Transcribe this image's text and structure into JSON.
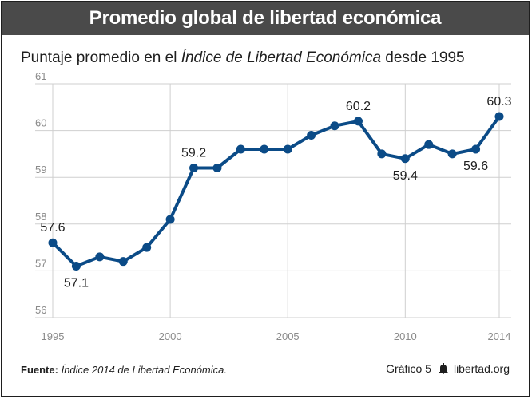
{
  "header": {
    "title": "Promedio global de libertad económica"
  },
  "subtitle": {
    "before": "Puntaje promedio en el ",
    "italic": "Índice de Libertad Económica",
    "after": " desde 1995"
  },
  "footer": {
    "source_label": "Fuente:",
    "source_text": "Índice 2014 de Libertad Económica.",
    "figure_label": "Gráfico 5",
    "site": "libertad.org",
    "icon": "bell-icon"
  },
  "colors": {
    "line": "#0b4b87",
    "header_bg": "#4a4a4a",
    "grid": "#cfcfcf",
    "axis_text": "#8a8a8a"
  },
  "chart_data": {
    "type": "line",
    "title": "Promedio global de libertad económica",
    "subtitle": "Puntaje promedio en el Índice de Libertad Económica desde 1995",
    "x": [
      1995,
      1996,
      1997,
      1998,
      1999,
      2000,
      2001,
      2002,
      2003,
      2004,
      2005,
      2006,
      2007,
      2008,
      2009,
      2010,
      2011,
      2012,
      2013,
      2014
    ],
    "series": [
      {
        "values": [
          57.6,
          57.1,
          57.3,
          57.2,
          57.5,
          58.1,
          59.2,
          59.2,
          59.6,
          59.6,
          59.6,
          59.9,
          60.1,
          60.2,
          59.5,
          59.4,
          59.7,
          59.5,
          59.6,
          60.3
        ]
      }
    ],
    "xlim": [
      1995,
      2014
    ],
    "ylim": [
      56,
      61
    ],
    "xticks": [
      1995,
      2000,
      2005,
      2010,
      2014
    ],
    "yticks": [
      56,
      57,
      58,
      59,
      60,
      61
    ],
    "grid": true,
    "annotations": [
      {
        "x": 1995,
        "y": 57.6,
        "label": "57.6",
        "pos": "above"
      },
      {
        "x": 1996,
        "y": 57.1,
        "label": "57.1",
        "pos": "below"
      },
      {
        "x": 2001,
        "y": 59.2,
        "label": "59.2",
        "pos": "above"
      },
      {
        "x": 2008,
        "y": 60.2,
        "label": "60.2",
        "pos": "above"
      },
      {
        "x": 2010,
        "y": 59.4,
        "label": "59.4",
        "pos": "below"
      },
      {
        "x": 2013,
        "y": 59.6,
        "label": "59.6",
        "pos": "below"
      },
      {
        "x": 2014,
        "y": 60.3,
        "label": "60.3",
        "pos": "above"
      }
    ]
  }
}
